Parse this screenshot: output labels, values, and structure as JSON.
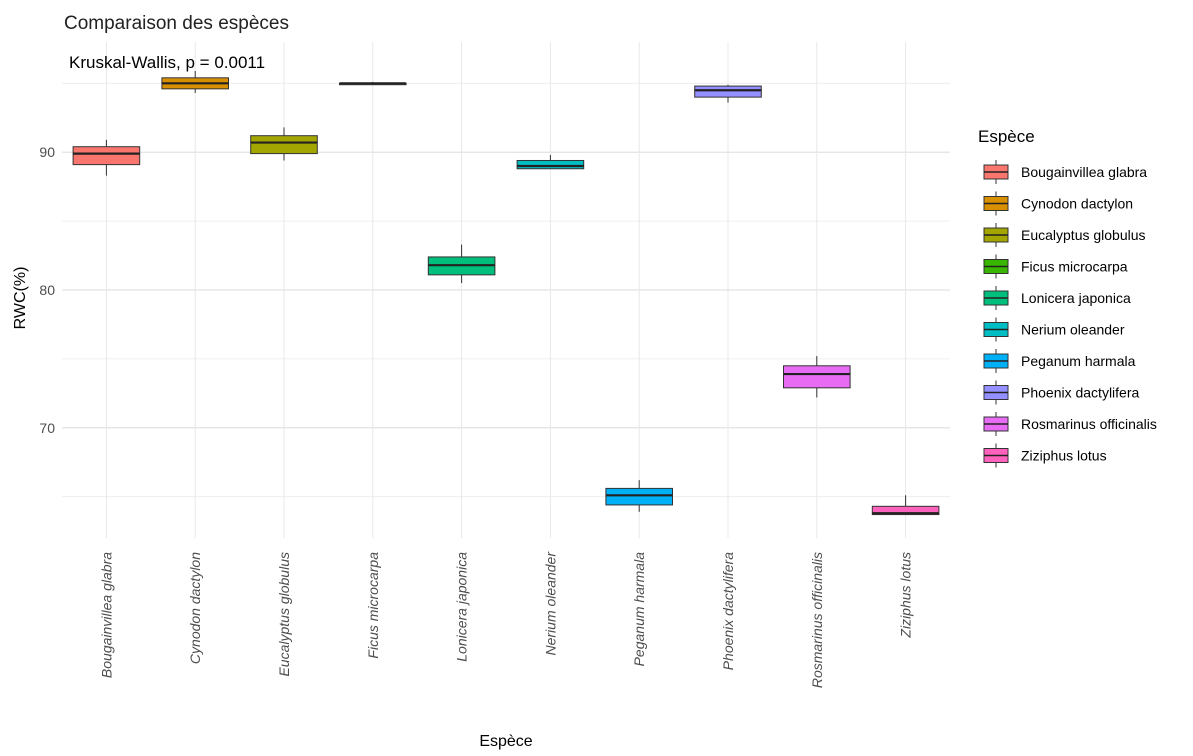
{
  "chart_data": {
    "type": "boxplot",
    "title": "Comparaison des espèces",
    "annotation": "Kruskal-Wallis, p = 0.0011",
    "xlabel": "Espèce",
    "ylabel": "RWC(%)",
    "ylim": [
      62,
      98
    ],
    "yticks": [
      70,
      80,
      90
    ],
    "grid": true,
    "legend": {
      "title": "Espèce",
      "placement": "right"
    },
    "categories": [
      "Bougainvillea glabra",
      "Cynodon dactylon",
      "Eucalyptus globulus",
      "Ficus microcarpa",
      "Lonicera japonica",
      "Nerium oleander",
      "Peganum harmala",
      "Phoenix dactylifera",
      "Rosmarinus officinalis",
      "Ziziphus lotus"
    ],
    "boxes": [
      {
        "name": "Bougainvillea glabra",
        "color": "#F8766D",
        "min": 88.3,
        "q1": 89.1,
        "median": 89.9,
        "q3": 90.4,
        "max": 90.9
      },
      {
        "name": "Cynodon dactylon",
        "color": "#D89000",
        "min": 94.3,
        "q1": 94.6,
        "median": 95.0,
        "q3": 95.4,
        "max": 95.9
      },
      {
        "name": "Eucalyptus globulus",
        "color": "#A3A500",
        "min": 89.4,
        "q1": 89.9,
        "median": 90.7,
        "q3": 91.2,
        "max": 91.8
      },
      {
        "name": "Ficus microcarpa",
        "color": "#39B600",
        "min": 94.9,
        "q1": 94.9,
        "median": 95.0,
        "q3": 95.0,
        "max": 95.1
      },
      {
        "name": "Lonicera japonica",
        "color": "#00BF7D",
        "min": 80.5,
        "q1": 81.1,
        "median": 81.8,
        "q3": 82.4,
        "max": 83.3
      },
      {
        "name": "Nerium oleander",
        "color": "#00BFC4",
        "min": 88.8,
        "q1": 88.8,
        "median": 89.0,
        "q3": 89.4,
        "max": 89.8
      },
      {
        "name": "Peganum harmala",
        "color": "#00B0F6",
        "min": 63.9,
        "q1": 64.4,
        "median": 65.1,
        "q3": 65.6,
        "max": 66.2
      },
      {
        "name": "Phoenix dactylifera",
        "color": "#9590FF",
        "min": 93.6,
        "q1": 94.0,
        "median": 94.5,
        "q3": 94.8,
        "max": 94.9
      },
      {
        "name": "Rosmarinus officinalis",
        "color": "#E76BF3",
        "min": 72.2,
        "q1": 72.9,
        "median": 73.9,
        "q3": 74.5,
        "max": 75.2
      },
      {
        "name": "Ziziphus lotus",
        "color": "#FF62BC",
        "min": 63.7,
        "q1": 63.7,
        "median": 63.8,
        "q3": 64.3,
        "max": 65.1
      }
    ]
  }
}
